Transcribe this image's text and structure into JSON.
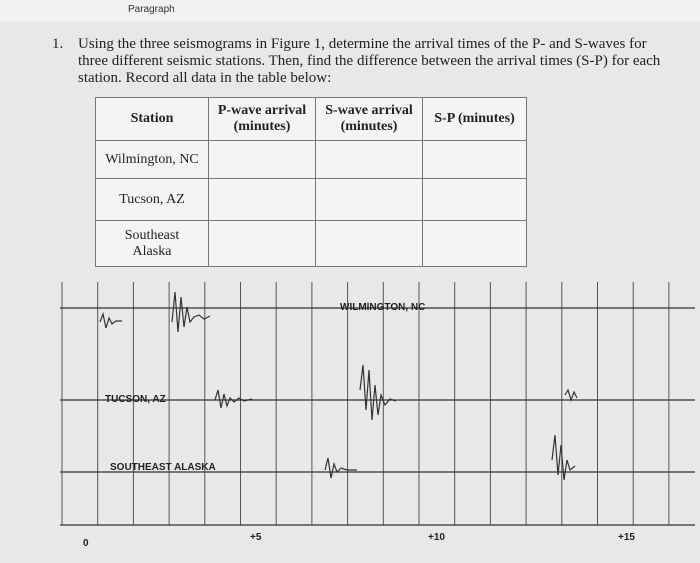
{
  "header": {
    "title": "Paragraph"
  },
  "question": {
    "number": "1.",
    "text": "Using the three seismograms in Figure 1, determine the arrival times of the P- and S-waves for three different seismic stations. Then, find the difference between the arrival times (S-P) for each station. Record all data in the table below:"
  },
  "table": {
    "headers": [
      "Station",
      "P-wave arrival (minutes)",
      "S-wave arrival (minutes)",
      "S-P (minutes)"
    ],
    "rows": [
      [
        "Wilmington, NC"
      ],
      [
        "Tucson, AZ"
      ],
      [
        "Southeast Alaska"
      ]
    ]
  },
  "figure": {
    "stations": [
      "WILMINGTON, NC",
      "TUCSON, AZ",
      "SOUTHEAST ALASKA"
    ],
    "axis_labels": [
      "0",
      "+5",
      "+10",
      "+15"
    ]
  }
}
